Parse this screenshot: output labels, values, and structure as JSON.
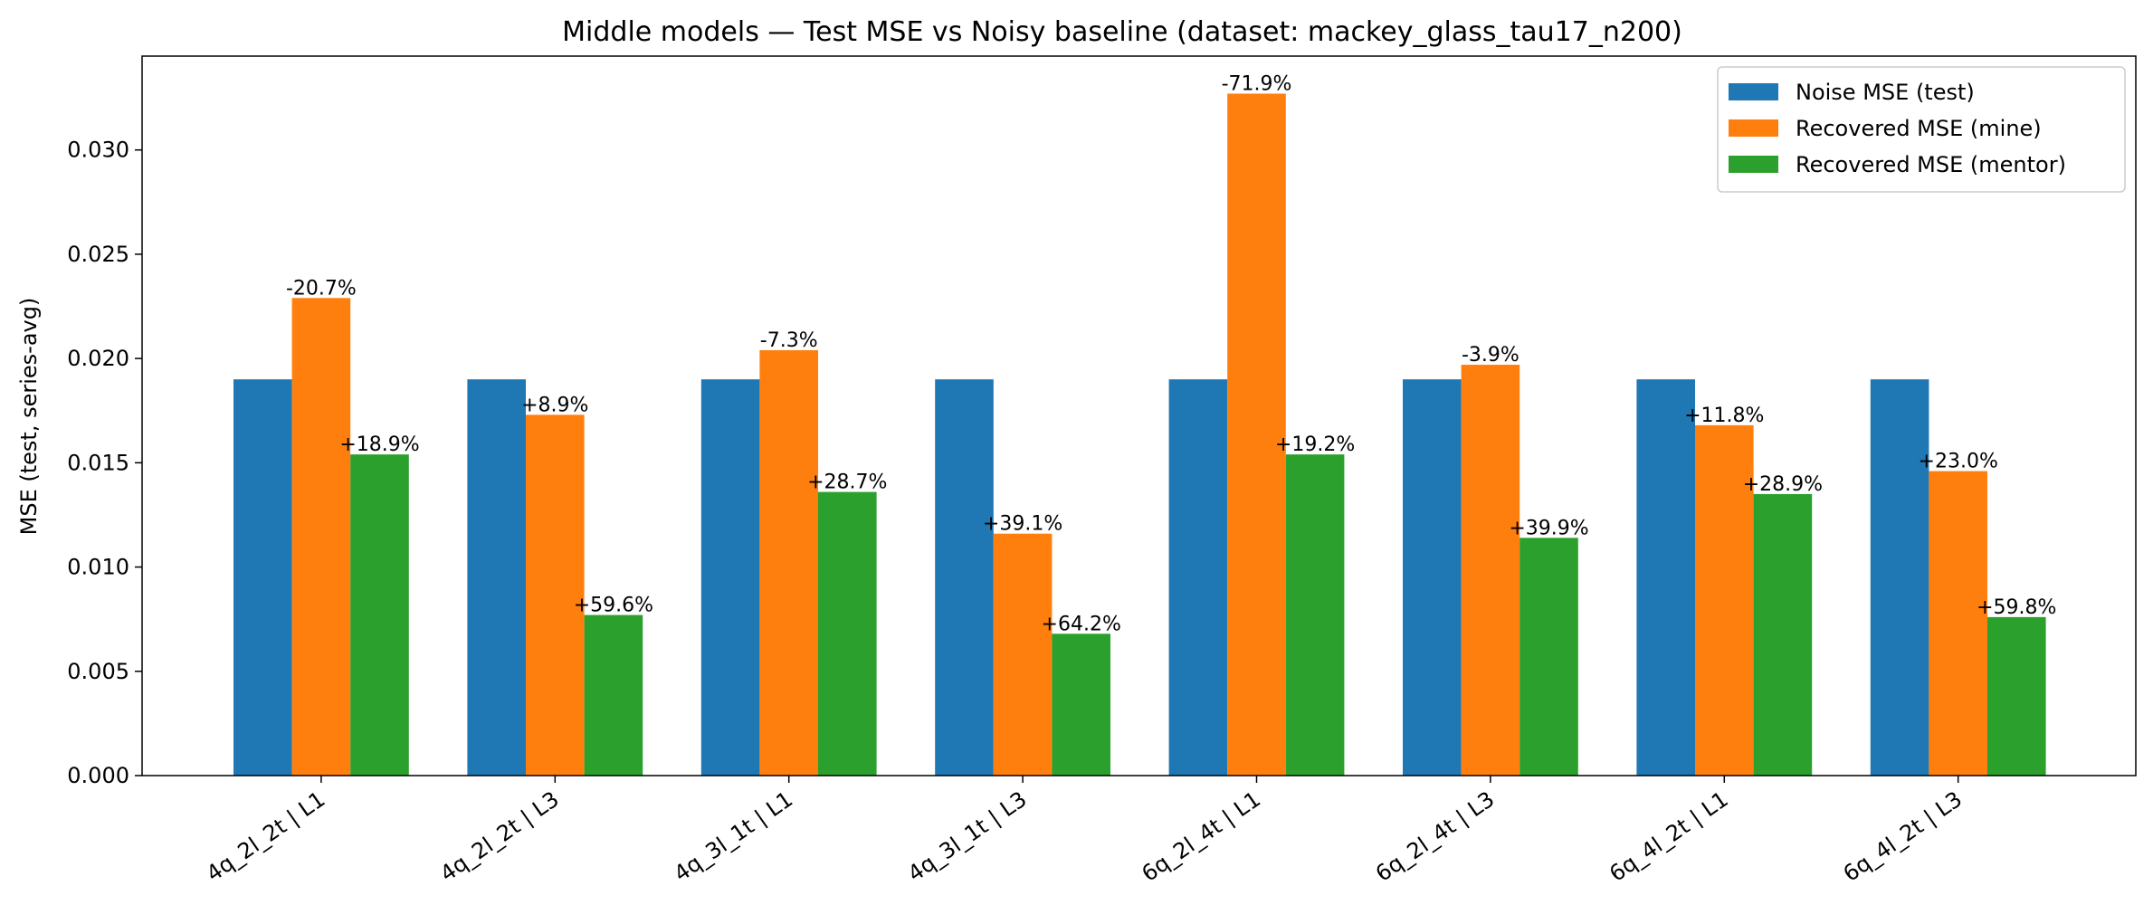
{
  "chart_data": {
    "type": "bar",
    "title": "Middle models — Test MSE vs Noisy baseline (dataset: mackey_glass_tau17_n200)",
    "xlabel": "",
    "ylabel": "MSE (test, series-avg)",
    "ylim": [
      0,
      0.0345
    ],
    "yticks": [
      "0.000",
      "0.005",
      "0.010",
      "0.015",
      "0.020",
      "0.025",
      "0.030"
    ],
    "ytick_values": [
      0,
      0.005,
      0.01,
      0.015,
      0.02,
      0.025,
      0.03
    ],
    "grid": false,
    "legend_position": "top-right",
    "categories": [
      "4q_2l_2t | L1",
      "4q_2l_2t | L3",
      "4q_3l_1t | L1",
      "4q_3l_1t | L3",
      "6q_2l_4t | L1",
      "6q_2l_4t | L3",
      "6q_4l_2t | L1",
      "6q_4l_2t | L3"
    ],
    "series": [
      {
        "name": "Noise MSE (test)",
        "color": "#1f77b4",
        "values": [
          0.019,
          0.019,
          0.019,
          0.019,
          0.019,
          0.019,
          0.019,
          0.019
        ],
        "labels": [
          "",
          "",
          "",
          "",
          "",
          "",
          "",
          ""
        ]
      },
      {
        "name": "Recovered MSE (mine)",
        "color": "#ff7f0e",
        "values": [
          0.0229,
          0.0173,
          0.0204,
          0.0116,
          0.0327,
          0.0197,
          0.0168,
          0.0146
        ],
        "labels": [
          "-20.7%",
          "+8.9%",
          "-7.3%",
          "+39.1%",
          "-71.9%",
          "-3.9%",
          "+11.8%",
          "+23.0%"
        ]
      },
      {
        "name": "Recovered MSE (mentor)",
        "color": "#2ca02c",
        "values": [
          0.0154,
          0.0077,
          0.0136,
          0.0068,
          0.0154,
          0.0114,
          0.0135,
          0.0076
        ],
        "labels": [
          "+18.9%",
          "+59.6%",
          "+28.7%",
          "+64.2%",
          "+19.2%",
          "+39.9%",
          "+28.9%",
          "+59.8%"
        ]
      }
    ]
  }
}
